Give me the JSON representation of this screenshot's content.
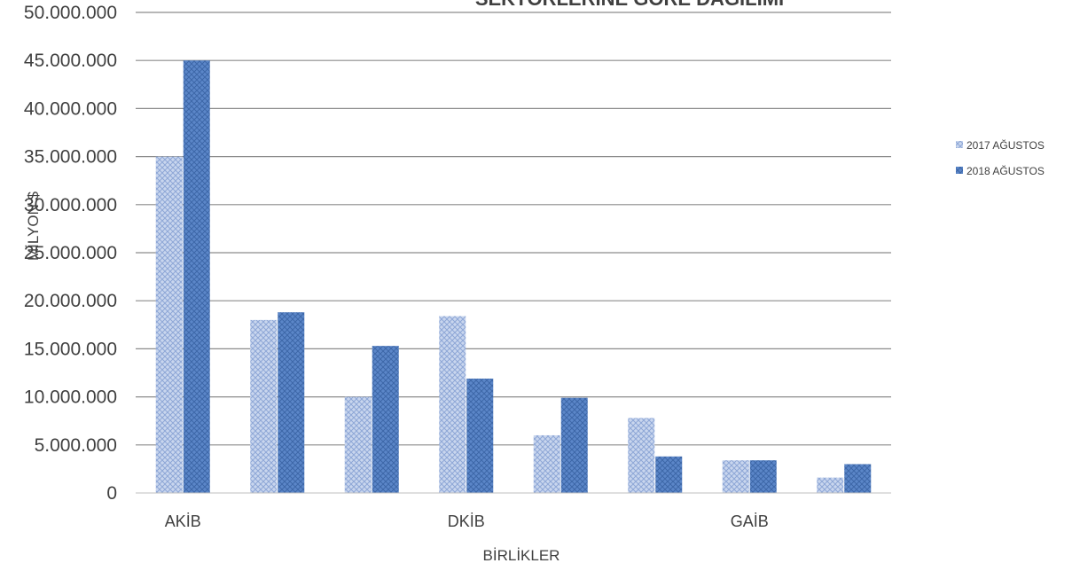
{
  "chart_data": {
    "type": "bar",
    "title": "SEKTÖRLERİNE GÖRE DAĞILIMI",
    "xlabel": "BİRLİKLER",
    "ylabel": "MİLYON $",
    "ylim": [
      0,
      50000000
    ],
    "yticks": [
      0,
      5000000,
      10000000,
      15000000,
      20000000,
      25000000,
      30000000,
      35000000,
      40000000,
      45000000,
      50000000
    ],
    "ytick_labels": [
      "0",
      "5.000.000",
      "10.000.000",
      "15.000.000",
      "20.000.000",
      "25.000.000",
      "30.000.000",
      "35.000.000",
      "40.000.000",
      "45.000.000",
      "50.000.000"
    ],
    "category_labels": [
      "AKİB",
      "",
      "",
      "DKİB",
      "",
      "",
      "GAİB",
      ""
    ],
    "legend_position": "right",
    "grid": true,
    "series": [
      {
        "name": "2017 AĞUSTOS",
        "color": "#a9bde0",
        "values": [
          35000000,
          18000000,
          10000000,
          18400000,
          6000000,
          7800000,
          3400000,
          1600000
        ]
      },
      {
        "name": "2018 AĞUSTOS",
        "color": "#4a79c0",
        "values": [
          45000000,
          18800000,
          15300000,
          11900000,
          9900000,
          3800000,
          3400000,
          3000000
        ]
      }
    ]
  }
}
